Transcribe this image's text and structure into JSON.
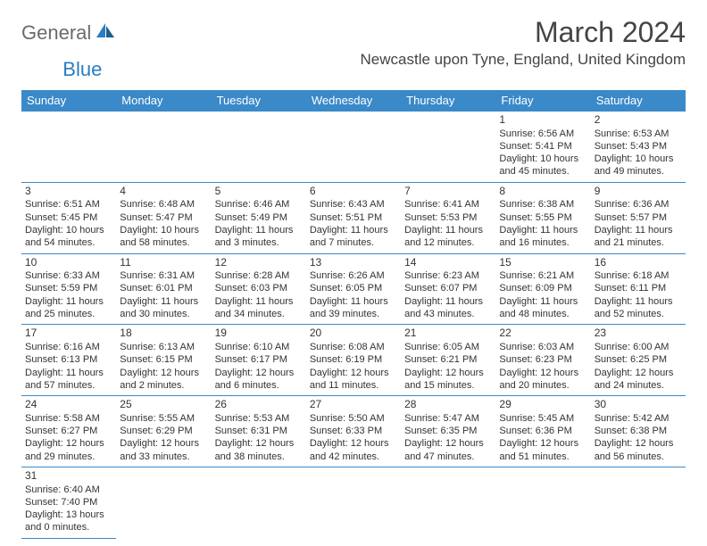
{
  "logo": {
    "part1": "General",
    "part2": "Blue"
  },
  "title": "March 2024",
  "location": "Newcastle upon Tyne, England, United Kingdom",
  "dayHeaders": [
    "Sunday",
    "Monday",
    "Tuesday",
    "Wednesday",
    "Thursday",
    "Friday",
    "Saturday"
  ],
  "colors": {
    "header_bg": "#3a89c9",
    "header_fg": "#ffffff",
    "border": "#3a89c9",
    "text": "#333333",
    "logo_gray": "#6b6b6b",
    "logo_blue": "#2a7ec3"
  },
  "weeks": [
    [
      null,
      null,
      null,
      null,
      null,
      {
        "n": "1",
        "sunrise": "Sunrise: 6:56 AM",
        "sunset": "Sunset: 5:41 PM",
        "day1": "Daylight: 10 hours",
        "day2": "and 45 minutes."
      },
      {
        "n": "2",
        "sunrise": "Sunrise: 6:53 AM",
        "sunset": "Sunset: 5:43 PM",
        "day1": "Daylight: 10 hours",
        "day2": "and 49 minutes."
      }
    ],
    [
      {
        "n": "3",
        "sunrise": "Sunrise: 6:51 AM",
        "sunset": "Sunset: 5:45 PM",
        "day1": "Daylight: 10 hours",
        "day2": "and 54 minutes."
      },
      {
        "n": "4",
        "sunrise": "Sunrise: 6:48 AM",
        "sunset": "Sunset: 5:47 PM",
        "day1": "Daylight: 10 hours",
        "day2": "and 58 minutes."
      },
      {
        "n": "5",
        "sunrise": "Sunrise: 6:46 AM",
        "sunset": "Sunset: 5:49 PM",
        "day1": "Daylight: 11 hours",
        "day2": "and 3 minutes."
      },
      {
        "n": "6",
        "sunrise": "Sunrise: 6:43 AM",
        "sunset": "Sunset: 5:51 PM",
        "day1": "Daylight: 11 hours",
        "day2": "and 7 minutes."
      },
      {
        "n": "7",
        "sunrise": "Sunrise: 6:41 AM",
        "sunset": "Sunset: 5:53 PM",
        "day1": "Daylight: 11 hours",
        "day2": "and 12 minutes."
      },
      {
        "n": "8",
        "sunrise": "Sunrise: 6:38 AM",
        "sunset": "Sunset: 5:55 PM",
        "day1": "Daylight: 11 hours",
        "day2": "and 16 minutes."
      },
      {
        "n": "9",
        "sunrise": "Sunrise: 6:36 AM",
        "sunset": "Sunset: 5:57 PM",
        "day1": "Daylight: 11 hours",
        "day2": "and 21 minutes."
      }
    ],
    [
      {
        "n": "10",
        "sunrise": "Sunrise: 6:33 AM",
        "sunset": "Sunset: 5:59 PM",
        "day1": "Daylight: 11 hours",
        "day2": "and 25 minutes."
      },
      {
        "n": "11",
        "sunrise": "Sunrise: 6:31 AM",
        "sunset": "Sunset: 6:01 PM",
        "day1": "Daylight: 11 hours",
        "day2": "and 30 minutes."
      },
      {
        "n": "12",
        "sunrise": "Sunrise: 6:28 AM",
        "sunset": "Sunset: 6:03 PM",
        "day1": "Daylight: 11 hours",
        "day2": "and 34 minutes."
      },
      {
        "n": "13",
        "sunrise": "Sunrise: 6:26 AM",
        "sunset": "Sunset: 6:05 PM",
        "day1": "Daylight: 11 hours",
        "day2": "and 39 minutes."
      },
      {
        "n": "14",
        "sunrise": "Sunrise: 6:23 AM",
        "sunset": "Sunset: 6:07 PM",
        "day1": "Daylight: 11 hours",
        "day2": "and 43 minutes."
      },
      {
        "n": "15",
        "sunrise": "Sunrise: 6:21 AM",
        "sunset": "Sunset: 6:09 PM",
        "day1": "Daylight: 11 hours",
        "day2": "and 48 minutes."
      },
      {
        "n": "16",
        "sunrise": "Sunrise: 6:18 AM",
        "sunset": "Sunset: 6:11 PM",
        "day1": "Daylight: 11 hours",
        "day2": "and 52 minutes."
      }
    ],
    [
      {
        "n": "17",
        "sunrise": "Sunrise: 6:16 AM",
        "sunset": "Sunset: 6:13 PM",
        "day1": "Daylight: 11 hours",
        "day2": "and 57 minutes."
      },
      {
        "n": "18",
        "sunrise": "Sunrise: 6:13 AM",
        "sunset": "Sunset: 6:15 PM",
        "day1": "Daylight: 12 hours",
        "day2": "and 2 minutes."
      },
      {
        "n": "19",
        "sunrise": "Sunrise: 6:10 AM",
        "sunset": "Sunset: 6:17 PM",
        "day1": "Daylight: 12 hours",
        "day2": "and 6 minutes."
      },
      {
        "n": "20",
        "sunrise": "Sunrise: 6:08 AM",
        "sunset": "Sunset: 6:19 PM",
        "day1": "Daylight: 12 hours",
        "day2": "and 11 minutes."
      },
      {
        "n": "21",
        "sunrise": "Sunrise: 6:05 AM",
        "sunset": "Sunset: 6:21 PM",
        "day1": "Daylight: 12 hours",
        "day2": "and 15 minutes."
      },
      {
        "n": "22",
        "sunrise": "Sunrise: 6:03 AM",
        "sunset": "Sunset: 6:23 PM",
        "day1": "Daylight: 12 hours",
        "day2": "and 20 minutes."
      },
      {
        "n": "23",
        "sunrise": "Sunrise: 6:00 AM",
        "sunset": "Sunset: 6:25 PM",
        "day1": "Daylight: 12 hours",
        "day2": "and 24 minutes."
      }
    ],
    [
      {
        "n": "24",
        "sunrise": "Sunrise: 5:58 AM",
        "sunset": "Sunset: 6:27 PM",
        "day1": "Daylight: 12 hours",
        "day2": "and 29 minutes."
      },
      {
        "n": "25",
        "sunrise": "Sunrise: 5:55 AM",
        "sunset": "Sunset: 6:29 PM",
        "day1": "Daylight: 12 hours",
        "day2": "and 33 minutes."
      },
      {
        "n": "26",
        "sunrise": "Sunrise: 5:53 AM",
        "sunset": "Sunset: 6:31 PM",
        "day1": "Daylight: 12 hours",
        "day2": "and 38 minutes."
      },
      {
        "n": "27",
        "sunrise": "Sunrise: 5:50 AM",
        "sunset": "Sunset: 6:33 PM",
        "day1": "Daylight: 12 hours",
        "day2": "and 42 minutes."
      },
      {
        "n": "28",
        "sunrise": "Sunrise: 5:47 AM",
        "sunset": "Sunset: 6:35 PM",
        "day1": "Daylight: 12 hours",
        "day2": "and 47 minutes."
      },
      {
        "n": "29",
        "sunrise": "Sunrise: 5:45 AM",
        "sunset": "Sunset: 6:36 PM",
        "day1": "Daylight: 12 hours",
        "day2": "and 51 minutes."
      },
      {
        "n": "30",
        "sunrise": "Sunrise: 5:42 AM",
        "sunset": "Sunset: 6:38 PM",
        "day1": "Daylight: 12 hours",
        "day2": "and 56 minutes."
      }
    ],
    [
      {
        "n": "31",
        "sunrise": "Sunrise: 6:40 AM",
        "sunset": "Sunset: 7:40 PM",
        "day1": "Daylight: 13 hours",
        "day2": "and 0 minutes."
      },
      null,
      null,
      null,
      null,
      null,
      null
    ]
  ]
}
